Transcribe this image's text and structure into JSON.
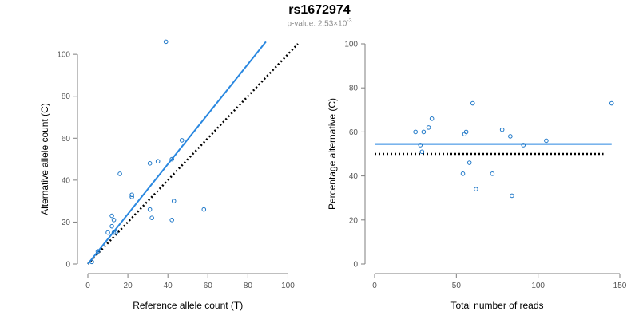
{
  "title": "rs1672974",
  "subtitle": {
    "prefix": "p-value: 2.53×10",
    "exponent": "-3"
  },
  "colors": {
    "fit": "#2a88e0",
    "points": "#1f78c8",
    "reference": "#000000",
    "axis": "#7f7f7f",
    "tick_text": "#555555"
  },
  "chart_data": [
    {
      "type": "scatter",
      "xlabel": "Reference allele count (T)",
      "ylabel": "Alternative allele count (C)",
      "xlim": [
        0,
        105
      ],
      "ylim": [
        0,
        105
      ],
      "xticks": [
        0,
        20,
        40,
        60,
        80,
        100
      ],
      "yticks": [
        0,
        20,
        40,
        60,
        80,
        100
      ],
      "points": [
        {
          "x": 2,
          "y": 1
        },
        {
          "x": 5,
          "y": 6
        },
        {
          "x": 10,
          "y": 15
        },
        {
          "x": 12,
          "y": 23
        },
        {
          "x": 12,
          "y": 18
        },
        {
          "x": 13,
          "y": 21
        },
        {
          "x": 13,
          "y": 15
        },
        {
          "x": 14,
          "y": 15
        },
        {
          "x": 16,
          "y": 43
        },
        {
          "x": 22,
          "y": 33
        },
        {
          "x": 22,
          "y": 32
        },
        {
          "x": 31,
          "y": 48
        },
        {
          "x": 31,
          "y": 26
        },
        {
          "x": 32,
          "y": 22
        },
        {
          "x": 35,
          "y": 49
        },
        {
          "x": 39,
          "y": 106
        },
        {
          "x": 42,
          "y": 21
        },
        {
          "x": 42,
          "y": 50
        },
        {
          "x": 43,
          "y": 30
        },
        {
          "x": 47,
          "y": 59
        },
        {
          "x": 58,
          "y": 26
        }
      ],
      "fit_line": {
        "x": [
          0,
          89
        ],
        "y": [
          0,
          106
        ]
      },
      "reference_line": {
        "x": [
          0,
          105
        ],
        "y": [
          0,
          105
        ]
      },
      "grid": false,
      "legend": false
    },
    {
      "type": "scatter",
      "xlabel": "Total number of reads",
      "ylabel": "Percentage alternative (C)",
      "xlim": [
        0,
        150
      ],
      "ylim": [
        0,
        100
      ],
      "xticks": [
        0,
        50,
        100,
        150
      ],
      "yticks": [
        0,
        20,
        40,
        60,
        80,
        100
      ],
      "points": [
        {
          "x": 25,
          "y": 60
        },
        {
          "x": 28,
          "y": 54
        },
        {
          "x": 29,
          "y": 51
        },
        {
          "x": 30,
          "y": 60
        },
        {
          "x": 33,
          "y": 62
        },
        {
          "x": 35,
          "y": 66
        },
        {
          "x": 54,
          "y": 41
        },
        {
          "x": 55,
          "y": 59
        },
        {
          "x": 56,
          "y": 60
        },
        {
          "x": 58,
          "y": 46
        },
        {
          "x": 60,
          "y": 73
        },
        {
          "x": 62,
          "y": 34
        },
        {
          "x": 72,
          "y": 41
        },
        {
          "x": 78,
          "y": 61
        },
        {
          "x": 83,
          "y": 58
        },
        {
          "x": 84,
          "y": 31
        },
        {
          "x": 91,
          "y": 54
        },
        {
          "x": 105,
          "y": 56
        },
        {
          "x": 145,
          "y": 73
        }
      ],
      "fit_line": {
        "x": [
          0,
          145
        ],
        "y": [
          54.5,
          54.5
        ]
      },
      "reference_line": {
        "x": [
          0,
          140
        ],
        "y": [
          50,
          50
        ]
      },
      "grid": false,
      "legend": false
    }
  ]
}
